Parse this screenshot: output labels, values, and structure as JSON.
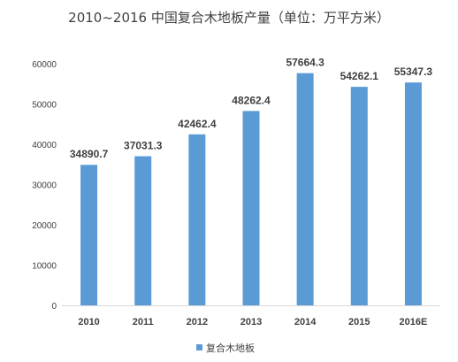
{
  "chart_data": {
    "type": "bar",
    "title": "2010~2016 中国复合木地板产量（单位：万平方米）",
    "categories": [
      "2010",
      "2011",
      "2012",
      "2013",
      "2014",
      "2015",
      "2016E"
    ],
    "series": [
      {
        "name": "复合木地板",
        "values": [
          34890.7,
          37031.3,
          42462.4,
          48262.4,
          57664.3,
          54262.1,
          55347.3
        ]
      }
    ],
    "data_labels": [
      "34890.7",
      "37031.3",
      "42462.4",
      "48262.4",
      "57664.3",
      "54262.1",
      "55347.3"
    ],
    "ylim": [
      0,
      60000
    ],
    "yticks": [
      "0",
      "10000",
      "20000",
      "30000",
      "40000",
      "50000",
      "60000"
    ],
    "xlabel": "",
    "ylabel": "",
    "grid": false,
    "legend_position": "bottom",
    "bar_color": "#5B9BD5"
  }
}
